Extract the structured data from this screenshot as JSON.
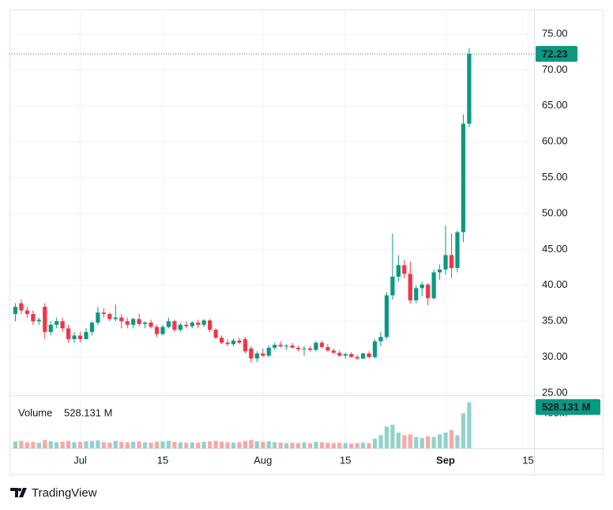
{
  "chart_data": {
    "type": "candlestick",
    "x": [
      "06-20",
      "06-21",
      "06-22",
      "06-23",
      "06-24",
      "06-25",
      "06-26",
      "06-27",
      "06-28",
      "06-29",
      "06-30",
      "07-01",
      "07-02",
      "07-03",
      "07-04",
      "07-05",
      "07-06",
      "07-07",
      "07-08",
      "07-09",
      "07-10",
      "07-11",
      "07-12",
      "07-13",
      "07-14",
      "07-15",
      "07-16",
      "07-17",
      "07-18",
      "07-19",
      "07-20",
      "07-21",
      "07-22",
      "07-23",
      "07-24",
      "07-25",
      "07-26",
      "07-27",
      "07-28",
      "07-29",
      "07-30",
      "07-31",
      "08-01",
      "08-02",
      "08-03",
      "08-04",
      "08-05",
      "08-06",
      "08-07",
      "08-08",
      "08-09",
      "08-10",
      "08-11",
      "08-12",
      "08-13",
      "08-14",
      "08-15",
      "08-16",
      "08-17",
      "08-18",
      "08-19",
      "08-20",
      "08-21",
      "08-22",
      "08-23",
      "08-24",
      "08-25",
      "08-26",
      "08-27",
      "08-28",
      "08-29",
      "08-30",
      "08-31",
      "09-01",
      "09-02",
      "09-03",
      "09-04",
      "09-05"
    ],
    "open": [
      36,
      37.5,
      36.5,
      36,
      35,
      37,
      33.5,
      34.5,
      35,
      34,
      32.5,
      33,
      32.5,
      33.5,
      34.8,
      36.2,
      36,
      35.3,
      35.5,
      35,
      34.5,
      35.3,
      34.6,
      34.8,
      34.2,
      33.2,
      34.2,
      35,
      33.8,
      34.5,
      34.3,
      34.8,
      34.5,
      35.1,
      33.8,
      32.7,
      32,
      31.8,
      32.3,
      32.5,
      31.2,
      29.8,
      30.5,
      30.2,
      31.3,
      31.7,
      31.5,
      31.6,
      31.3,
      31.1,
      31.2,
      31,
      32,
      31.4,
      30.9,
      30.6,
      30.2,
      30.4,
      30,
      29.8,
      30.5,
      30,
      32.2,
      32.8,
      38.6,
      41.2,
      42.8,
      41.6,
      37.9,
      39.6,
      40.1,
      38.2,
      41.8,
      42.2,
      44.2,
      42.4,
      47.4,
      62.5
    ],
    "high": [
      37.5,
      38,
      37,
      36.5,
      35.5,
      37.5,
      35,
      35.5,
      35.5,
      34.5,
      33.5,
      33.5,
      34,
      35,
      37,
      36.8,
      36.2,
      37.3,
      36,
      35.5,
      35.5,
      36,
      35,
      35.2,
      34.5,
      34.5,
      35.5,
      35.2,
      34.8,
      35,
      35,
      35.2,
      35.3,
      35.3,
      34,
      33,
      32.5,
      32.6,
      32.7,
      32.8,
      31.5,
      30.8,
      31.2,
      31.6,
      32,
      32.2,
      31.8,
      32,
      31.6,
      31.5,
      31.5,
      32.2,
      32.3,
      31.8,
      31.2,
      30.9,
      30.6,
      30.7,
      30.3,
      30.6,
      30.8,
      32.5,
      33.5,
      39,
      47.2,
      44.2,
      43.5,
      43.3,
      40,
      40.5,
      40.3,
      42.2,
      42.9,
      48.3,
      47.2,
      47.6,
      63.8,
      73
    ],
    "low": [
      35,
      36,
      35.5,
      34.5,
      34.5,
      32.5,
      33,
      34,
      33.5,
      32,
      32,
      32,
      32.5,
      33,
      34.5,
      35.5,
      35,
      35,
      34,
      34,
      34,
      34.3,
      34,
      34,
      32.8,
      33,
      34,
      33.5,
      33.5,
      34,
      34,
      34,
      34.2,
      33.5,
      32.5,
      31.8,
      31.5,
      31.5,
      31.8,
      30.5,
      29.2,
      29.3,
      30,
      30,
      31,
      31.3,
      31,
      31.3,
      30.8,
      30.2,
      30.8,
      30.8,
      31.2,
      30.8,
      30.4,
      30,
      29.8,
      29.9,
      29.6,
      29.7,
      29.9,
      29.8,
      31.5,
      32.5,
      38,
      40.5,
      41,
      37.5,
      37.5,
      38.5,
      37.2,
      38,
      40.8,
      41.5,
      41,
      41.8,
      46,
      62
    ],
    "close": [
      37,
      36.5,
      36,
      35,
      35.2,
      33.5,
      34.5,
      35,
      34,
      32.5,
      33,
      32.5,
      33.5,
      34.8,
      36.2,
      36,
      35.3,
      35.5,
      35,
      34.5,
      35.3,
      34.6,
      34.8,
      34.2,
      33.2,
      34.2,
      35,
      33.8,
      34.5,
      34.3,
      34.8,
      34.5,
      35.1,
      33.8,
      32.7,
      32,
      31.8,
      32.3,
      32,
      30.8,
      29.8,
      30.5,
      30.2,
      31.3,
      31.7,
      31.5,
      31.6,
      31.3,
      31.1,
      31.2,
      31,
      32,
      31.4,
      30.9,
      30.6,
      30.2,
      30.4,
      30,
      29.8,
      30.5,
      30,
      32.2,
      32.8,
      38.6,
      41.2,
      42.8,
      41.6,
      37.9,
      39.6,
      40.1,
      38.2,
      41.8,
      42.2,
      44.2,
      42.4,
      47.4,
      62.5,
      72.23
    ],
    "volume": [
      80,
      85,
      70,
      75,
      65,
      95,
      80,
      70,
      75,
      85,
      70,
      75,
      80,
      85,
      90,
      70,
      65,
      85,
      75,
      70,
      75,
      80,
      70,
      65,
      75,
      80,
      85,
      75,
      70,
      65,
      70,
      65,
      75,
      80,
      85,
      75,
      70,
      65,
      70,
      85,
      95,
      80,
      75,
      80,
      70,
      65,
      60,
      65,
      60,
      70,
      60,
      75,
      70,
      65,
      60,
      65,
      60,
      55,
      60,
      65,
      60,
      110,
      150,
      250,
      270,
      180,
      150,
      160,
      130,
      120,
      140,
      130,
      160,
      180,
      210,
      150,
      400,
      528.131
    ],
    "volume_title": "Volume",
    "volume_last_label": "528.131 M",
    "up_color": "#089981",
    "down_color": "#f23645",
    "volume_up_color": "#92d2cc",
    "volume_down_color": "#f7a9a7",
    "xlim": [
      "06-19",
      "09-16"
    ],
    "xticks": [
      {
        "value": "07-01",
        "label": "Jul"
      },
      {
        "value": "07-15",
        "label": "15"
      },
      {
        "value": "08-01",
        "label": "Aug"
      },
      {
        "value": "08-15",
        "label": "15"
      },
      {
        "value": "09-01",
        "label": "Sep"
      },
      {
        "value": "09-15",
        "label": "15"
      }
    ],
    "ylim": [
      24.67,
      78.41
    ],
    "yticks": [
      {
        "value": 25,
        "label": "25.00"
      },
      {
        "value": 30,
        "label": "30.00"
      },
      {
        "value": 35,
        "label": "35.00"
      },
      {
        "value": 40,
        "label": "40.00"
      },
      {
        "value": 45,
        "label": "45.00"
      },
      {
        "value": 50,
        "label": "50.00"
      },
      {
        "value": 55,
        "label": "55.00"
      },
      {
        "value": 60,
        "label": "60.00"
      },
      {
        "value": 65,
        "label": "65.00"
      },
      {
        "value": 70,
        "label": "70.00"
      },
      {
        "value": 75,
        "label": "75.00"
      }
    ],
    "volume_ylim": [
      0,
      580
    ],
    "volume_yticks": [
      {
        "value": 400,
        "label": "400M"
      }
    ],
    "grid": true,
    "brand": "TradingView"
  }
}
